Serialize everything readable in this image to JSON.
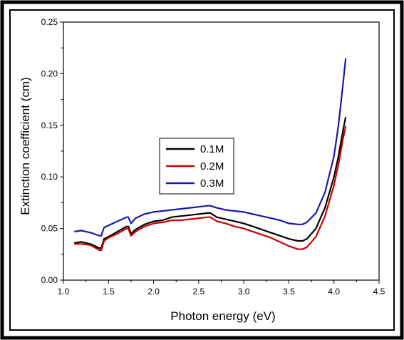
{
  "chart_data": {
    "type": "line",
    "title": "",
    "xlabel": "Photon energy (eV)",
    "ylabel": "Extinction coefficient (cm)",
    "xlim": [
      1.0,
      4.5
    ],
    "ylim": [
      0.0,
      0.25
    ],
    "xticks": [
      "1.0",
      "1.5",
      "2.0",
      "2.5",
      "3.0",
      "3.5",
      "4.0",
      "4.5"
    ],
    "yticks": [
      "0.00",
      "0.05",
      "0.10",
      "0.15",
      "0.20",
      "0.25"
    ],
    "grid": false,
    "legend": "center-left",
    "series": [
      {
        "name": "0.1M",
        "color": "#000000",
        "x": [
          1.12,
          1.2,
          1.3,
          1.4,
          1.42,
          1.45,
          1.5,
          1.6,
          1.7,
          1.72,
          1.75,
          1.8,
          1.9,
          2.0,
          2.1,
          2.2,
          2.3,
          2.4,
          2.5,
          2.6,
          2.63,
          2.7,
          2.8,
          2.9,
          3.0,
          3.1,
          3.2,
          3.3,
          3.4,
          3.5,
          3.6,
          3.65,
          3.7,
          3.8,
          3.9,
          4.0,
          4.05,
          4.1,
          4.13
        ],
        "y": [
          0.036,
          0.037,
          0.035,
          0.031,
          0.031,
          0.04,
          0.042,
          0.047,
          0.052,
          0.052,
          0.045,
          0.049,
          0.054,
          0.057,
          0.058,
          0.061,
          0.062,
          0.063,
          0.064,
          0.065,
          0.065,
          0.061,
          0.059,
          0.057,
          0.055,
          0.052,
          0.049,
          0.046,
          0.043,
          0.04,
          0.038,
          0.038,
          0.04,
          0.05,
          0.07,
          0.1,
          0.12,
          0.145,
          0.158
        ]
      },
      {
        "name": "0.2M",
        "color": "#cc0000",
        "x": [
          1.12,
          1.2,
          1.3,
          1.4,
          1.42,
          1.45,
          1.5,
          1.6,
          1.7,
          1.72,
          1.75,
          1.8,
          1.9,
          2.0,
          2.1,
          2.2,
          2.3,
          2.4,
          2.5,
          2.6,
          2.63,
          2.7,
          2.8,
          2.9,
          3.0,
          3.1,
          3.2,
          3.3,
          3.4,
          3.5,
          3.6,
          3.65,
          3.7,
          3.8,
          3.9,
          4.0,
          4.05,
          4.1,
          4.13
        ],
        "y": [
          0.035,
          0.035,
          0.034,
          0.029,
          0.029,
          0.038,
          0.041,
          0.045,
          0.05,
          0.05,
          0.043,
          0.047,
          0.052,
          0.055,
          0.056,
          0.058,
          0.058,
          0.059,
          0.06,
          0.061,
          0.061,
          0.057,
          0.055,
          0.052,
          0.05,
          0.047,
          0.044,
          0.041,
          0.037,
          0.033,
          0.03,
          0.03,
          0.032,
          0.042,
          0.062,
          0.092,
          0.112,
          0.137,
          0.149
        ]
      },
      {
        "name": "0.3M",
        "color": "#1a1aaa",
        "x": [
          1.12,
          1.2,
          1.3,
          1.4,
          1.42,
          1.45,
          1.5,
          1.6,
          1.7,
          1.72,
          1.75,
          1.8,
          1.9,
          2.0,
          2.1,
          2.2,
          2.3,
          2.4,
          2.5,
          2.6,
          2.63,
          2.7,
          2.8,
          2.9,
          3.0,
          3.1,
          3.2,
          3.3,
          3.4,
          3.5,
          3.6,
          3.65,
          3.7,
          3.8,
          3.9,
          4.0,
          4.05,
          4.1,
          4.13
        ],
        "y": [
          0.047,
          0.048,
          0.046,
          0.043,
          0.043,
          0.051,
          0.053,
          0.057,
          0.061,
          0.061,
          0.055,
          0.06,
          0.064,
          0.066,
          0.067,
          0.068,
          0.069,
          0.07,
          0.071,
          0.072,
          0.072,
          0.07,
          0.068,
          0.067,
          0.066,
          0.064,
          0.062,
          0.06,
          0.058,
          0.055,
          0.054,
          0.054,
          0.056,
          0.065,
          0.085,
          0.12,
          0.15,
          0.19,
          0.215
        ]
      }
    ]
  }
}
